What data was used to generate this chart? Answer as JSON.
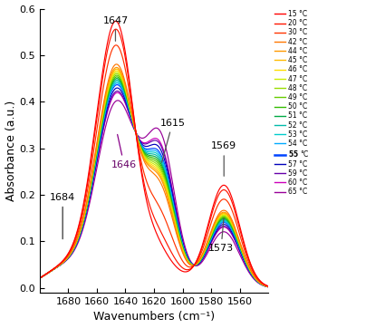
{
  "temperatures": [
    15,
    20,
    30,
    42,
    44,
    45,
    46,
    47,
    48,
    49,
    50,
    51,
    52,
    53,
    54,
    55,
    57,
    59,
    60,
    65
  ],
  "colors": [
    "#FF0000",
    "#FF1500",
    "#FF3300",
    "#FF7700",
    "#FF9900",
    "#FFBB00",
    "#FFDD00",
    "#CCEE00",
    "#99DD00",
    "#66CC00",
    "#33BB00",
    "#00AA44",
    "#00BBAA",
    "#00CCCC",
    "#00AAFF",
    "#0044FF",
    "#0000BB",
    "#6600AA",
    "#CC00BB",
    "#990099"
  ],
  "xmin": 1540,
  "xmax": 1700,
  "xlabel": "Wavenumbers (cm⁻¹)",
  "ylabel": "Absorbance (a.u.)"
}
